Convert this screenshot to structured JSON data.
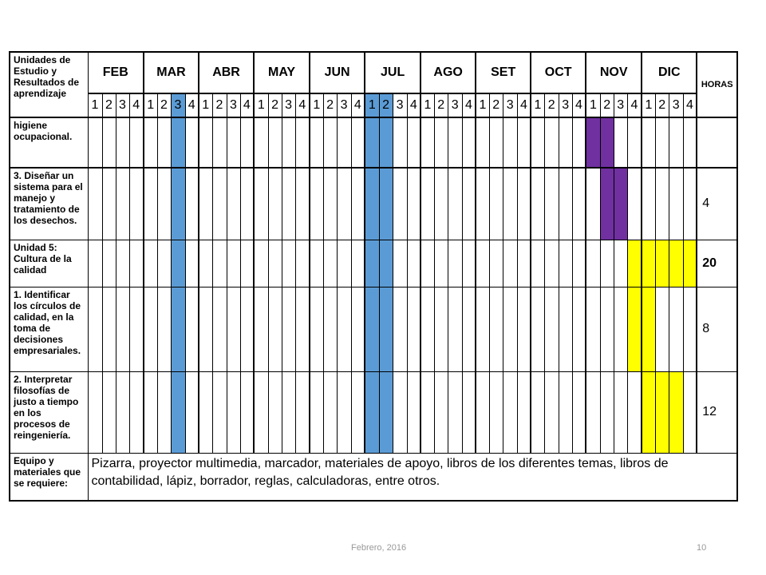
{
  "header": {
    "unit_label": "Unidades de Estudio y Resultados de aprendizaje",
    "horas_label": "HORAS"
  },
  "months": [
    "FEB",
    "MAR",
    "ABR",
    "MAY",
    "JUN",
    "JUL",
    "AGO",
    "SET",
    "OCT",
    "NOV",
    "DIC"
  ],
  "week_labels": [
    "1",
    "2",
    "3",
    "4"
  ],
  "colors": {
    "blue": "#5b9bd5",
    "purple": "#7030a0",
    "yellow": "#ffff00"
  },
  "blue_weeks": [
    6,
    20,
    21
  ],
  "rows": [
    {
      "label": "higiene ocupacional.",
      "hours": "",
      "bold_hours": false,
      "highlight": {
        "color": "purple",
        "weeks": [
          36,
          37
        ]
      }
    },
    {
      "label": "3. Diseñar un sistema para el manejo y tratamiento de los desechos.",
      "hours": "4",
      "bold_hours": false,
      "highlight": {
        "color": "purple",
        "weeks": [
          37,
          38
        ]
      }
    },
    {
      "label": "Unidad 5: Cultura de la calidad",
      "hours": "20",
      "bold_hours": true,
      "highlight": {
        "color": "yellow",
        "weeks": [
          39,
          40,
          41,
          42,
          43
        ]
      }
    },
    {
      "label": "1. Identificar los círculos de calidad, en la toma de decisiones empresariales.",
      "hours": "8",
      "bold_hours": false,
      "highlight": {
        "color": "yellow",
        "weeks": [
          39,
          40
        ]
      }
    },
    {
      "label": "2. Interpretar filosofías de justo a tiempo en los procesos de reingeniería.",
      "hours": "12",
      "bold_hours": false,
      "highlight": {
        "color": "yellow",
        "weeks": [
          40,
          41,
          42
        ]
      }
    }
  ],
  "equipment": {
    "label": "Equipo y materiales que se requiere:",
    "text": "Pizarra, proyector multimedia, marcador, materiales de apoyo, libros de los diferentes temas, libros de contabilidad, lápiz, borrador, reglas, calculadoras, entre otros."
  },
  "footer": {
    "date": "Febrero, 2016",
    "page": "10"
  }
}
